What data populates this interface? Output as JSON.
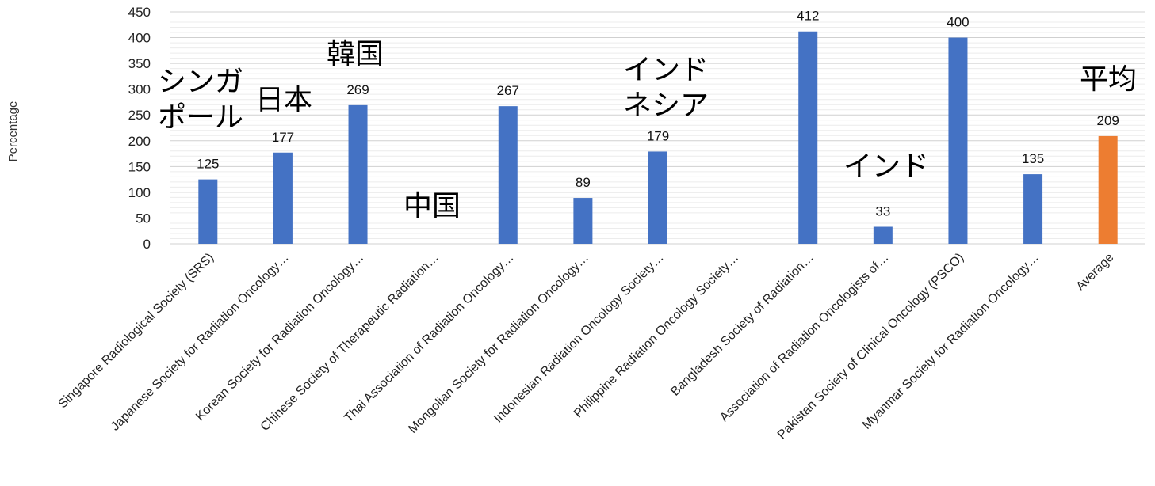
{
  "chart_data": {
    "type": "bar",
    "ylabel": "Percentage",
    "ylim": [
      0,
      450
    ],
    "yticks": [
      0,
      50,
      100,
      150,
      200,
      250,
      300,
      350,
      400,
      450
    ],
    "grid": true,
    "categories": [
      "Singapore Radiological Society (SRS)",
      "Japanese Society for Radiation Oncology…",
      "Korean Society for Radiation Oncology…",
      "Chinese Society of Therapeutic Radiation…",
      "Thai Association of Radiation Oncology…",
      "Mongolian Society for Radiation Oncology…",
      "Indonesian Radiation Oncology Society…",
      "Philippine Radiation Oncology Society…",
      "Bangladesh Society of Radiation…",
      "Association of Radiation Oncologists of…",
      "Pakistan Society of Clinical Oncology (PSCO)",
      "Myanmar Society for Radiation Oncology…",
      "Average"
    ],
    "values": [
      125,
      177,
      269,
      null,
      267,
      89,
      179,
      null,
      412,
      33,
      400,
      135,
      209
    ],
    "colors": {
      "default": "#4472C4",
      "average": "#ED7D31"
    },
    "annotations": [
      {
        "lines": [
          "シンガ",
          "ポール"
        ],
        "category": 0
      },
      {
        "lines": [
          "日本"
        ],
        "category": 1
      },
      {
        "lines": [
          "韓国"
        ],
        "category": 2
      },
      {
        "lines": [
          "中国"
        ],
        "category": 3
      },
      {
        "lines": [
          "インド",
          "ネシア"
        ],
        "category": 6
      },
      {
        "lines": [
          "インド"
        ],
        "category": 9
      },
      {
        "lines": [
          "平均"
        ],
        "category": 12
      }
    ]
  }
}
